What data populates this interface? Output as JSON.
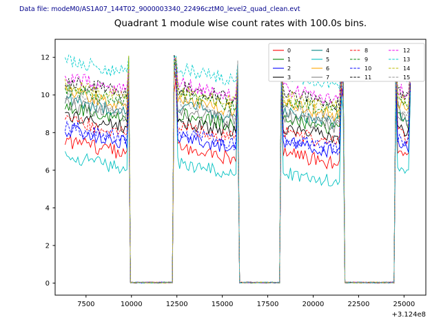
{
  "header": {
    "text": "Data file: modeM0/AS1A07_144T02_9000003340_22496cztM0_level2_quad_clean.evt",
    "color": "#00008b"
  },
  "chart_data": {
    "type": "line",
    "title": "Quadrant 1 module wise count rates with 100.0s bins.",
    "xlabel": "",
    "ylabel": "",
    "x_offset_label": "+3.124e8",
    "xlim": [
      5800,
      26200
    ],
    "ylim": [
      -0.64,
      12.96
    ],
    "xticks": [
      7500,
      10000,
      12500,
      15000,
      17500,
      20000,
      22500,
      25000
    ],
    "yticks": [
      0,
      2,
      4,
      6,
      8,
      10,
      12
    ],
    "bin_width": 100,
    "grid": false,
    "segments": [
      [
        6350,
        9900
      ],
      [
        12350,
        15900
      ],
      [
        18200,
        21650
      ],
      [
        24500,
        25400
      ]
    ],
    "gap_level": 0.03,
    "spike_peak": 12.45,
    "legend": {
      "position": "upper right",
      "columns": 4,
      "order": "column-major"
    },
    "series": [
      {
        "name": "0",
        "color": "#ff0000",
        "style": "solid",
        "levels": [
          7.2,
          6.9,
          6.6,
          6.9
        ]
      },
      {
        "name": "1",
        "color": "#008000",
        "style": "solid",
        "levels": [
          9.0,
          8.7,
          8.4,
          8.6
        ]
      },
      {
        "name": "2",
        "color": "#0000ff",
        "style": "solid",
        "levels": [
          7.8,
          7.5,
          7.2,
          7.4
        ]
      },
      {
        "name": "3",
        "color": "#000000",
        "style": "solid",
        "levels": [
          8.6,
          8.3,
          8.0,
          8.2
        ]
      },
      {
        "name": "4",
        "color": "#008080",
        "style": "solid",
        "levels": [
          9.4,
          9.1,
          8.8,
          9.0
        ]
      },
      {
        "name": "5",
        "color": "#00c0c0",
        "style": "solid",
        "levels": [
          6.4,
          6.1,
          5.6,
          5.9
        ]
      },
      {
        "name": "6",
        "color": "#ffa500",
        "style": "solid",
        "levels": [
          9.8,
          9.5,
          9.2,
          9.4
        ]
      },
      {
        "name": "7",
        "color": "#808080",
        "style": "solid",
        "levels": [
          9.2,
          8.9,
          8.6,
          8.8
        ]
      },
      {
        "name": "8",
        "color": "#ff0000",
        "style": "dashed",
        "levels": [
          8.3,
          8.0,
          7.7,
          7.9
        ]
      },
      {
        "name": "9",
        "color": "#008000",
        "style": "dashed",
        "levels": [
          10.0,
          9.7,
          9.4,
          9.6
        ]
      },
      {
        "name": "10",
        "color": "#0000ff",
        "style": "dashed",
        "levels": [
          8.0,
          7.7,
          7.4,
          7.6
        ]
      },
      {
        "name": "11",
        "color": "#000000",
        "style": "dashed",
        "levels": [
          10.4,
          10.1,
          9.8,
          10.0
        ]
      },
      {
        "name": "12",
        "color": "#ee00ee",
        "style": "dashed",
        "levels": [
          10.6,
          10.3,
          10.0,
          10.2
        ]
      },
      {
        "name": "13",
        "color": "#00cccc",
        "style": "dashed",
        "levels": [
          11.5,
          11.1,
          10.8,
          11.0
        ]
      },
      {
        "name": "14",
        "color": "#bbbb00",
        "style": "dashed",
        "levels": [
          10.2,
          9.9,
          9.6,
          9.8
        ]
      },
      {
        "name": "15",
        "color": "#909090",
        "style": "dashed",
        "levels": [
          9.6,
          9.3,
          9.0,
          9.2
        ]
      }
    ]
  }
}
